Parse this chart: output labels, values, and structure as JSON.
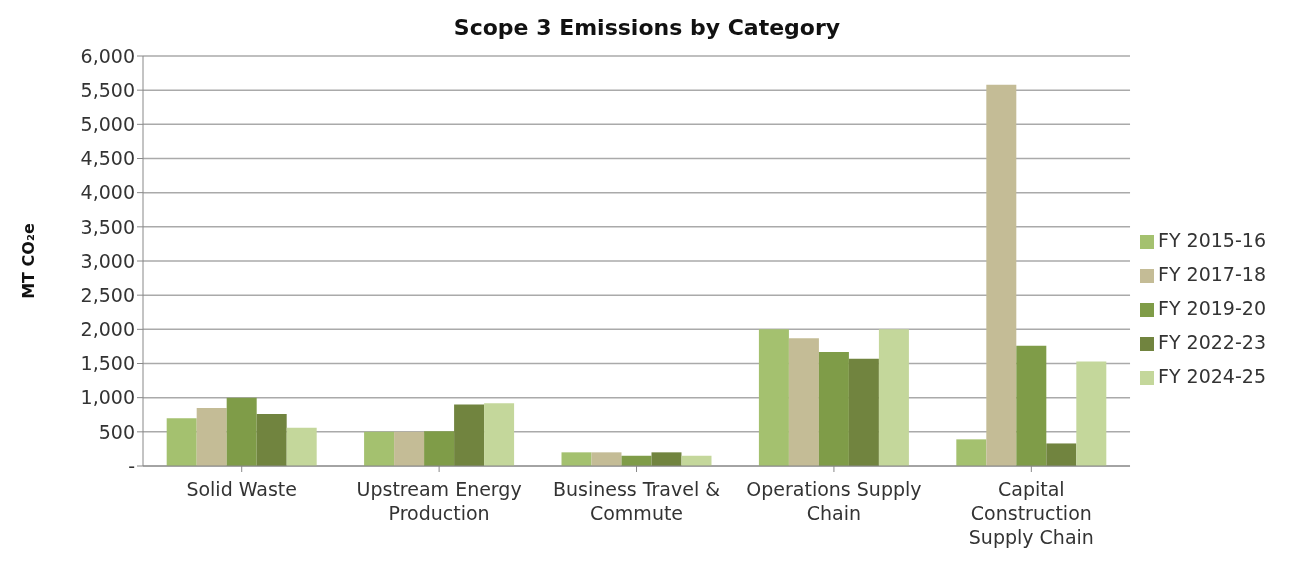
{
  "chart_data": {
    "type": "bar",
    "title": "Scope 3 Emissions by Category",
    "ylabel": "MT CO₂e",
    "categories": [
      "Solid Waste",
      "Upstream Energy Production",
      "Business Travel & Commute",
      "Operations Supply Chain",
      "Capital Construction Supply Chain"
    ],
    "series": [
      {
        "name": "FY 2015-16",
        "color": "#a4c16f",
        "values": [
          700,
          500,
          200,
          2000,
          390
        ]
      },
      {
        "name": "FY 2017-18",
        "color": "#c4bc96",
        "values": [
          850,
          500,
          200,
          1870,
          5580
        ]
      },
      {
        "name": "FY 2019-20",
        "color": "#7f9c48",
        "values": [
          1000,
          510,
          150,
          1670,
          1760
        ]
      },
      {
        "name": "FY 2022-23",
        "color": "#71843f",
        "values": [
          760,
          900,
          200,
          1570,
          330
        ]
      },
      {
        "name": "FY 2024-25",
        "color": "#c4d79b",
        "values": [
          560,
          920,
          150,
          2000,
          1530
        ]
      }
    ],
    "ylim": [
      0,
      6000
    ],
    "yticks": [
      {
        "value": 0,
        "label": "-"
      },
      500,
      {
        "value": 1000,
        "label": "1,000"
      },
      {
        "value": 1500,
        "label": "1,500"
      },
      {
        "value": 2000,
        "label": "2,000"
      },
      {
        "value": 2500,
        "label": "2,500"
      },
      {
        "value": 3000,
        "label": "3,000"
      },
      {
        "value": 3500,
        "label": "3,500"
      },
      {
        "value": 4000,
        "label": "4,000"
      },
      {
        "value": 4500,
        "label": "4,500"
      },
      {
        "value": 5000,
        "label": "5,000"
      },
      {
        "value": 5500,
        "label": "5,500"
      },
      {
        "value": 6000,
        "label": "6,000"
      }
    ],
    "grid": "y",
    "legend": "right"
  }
}
